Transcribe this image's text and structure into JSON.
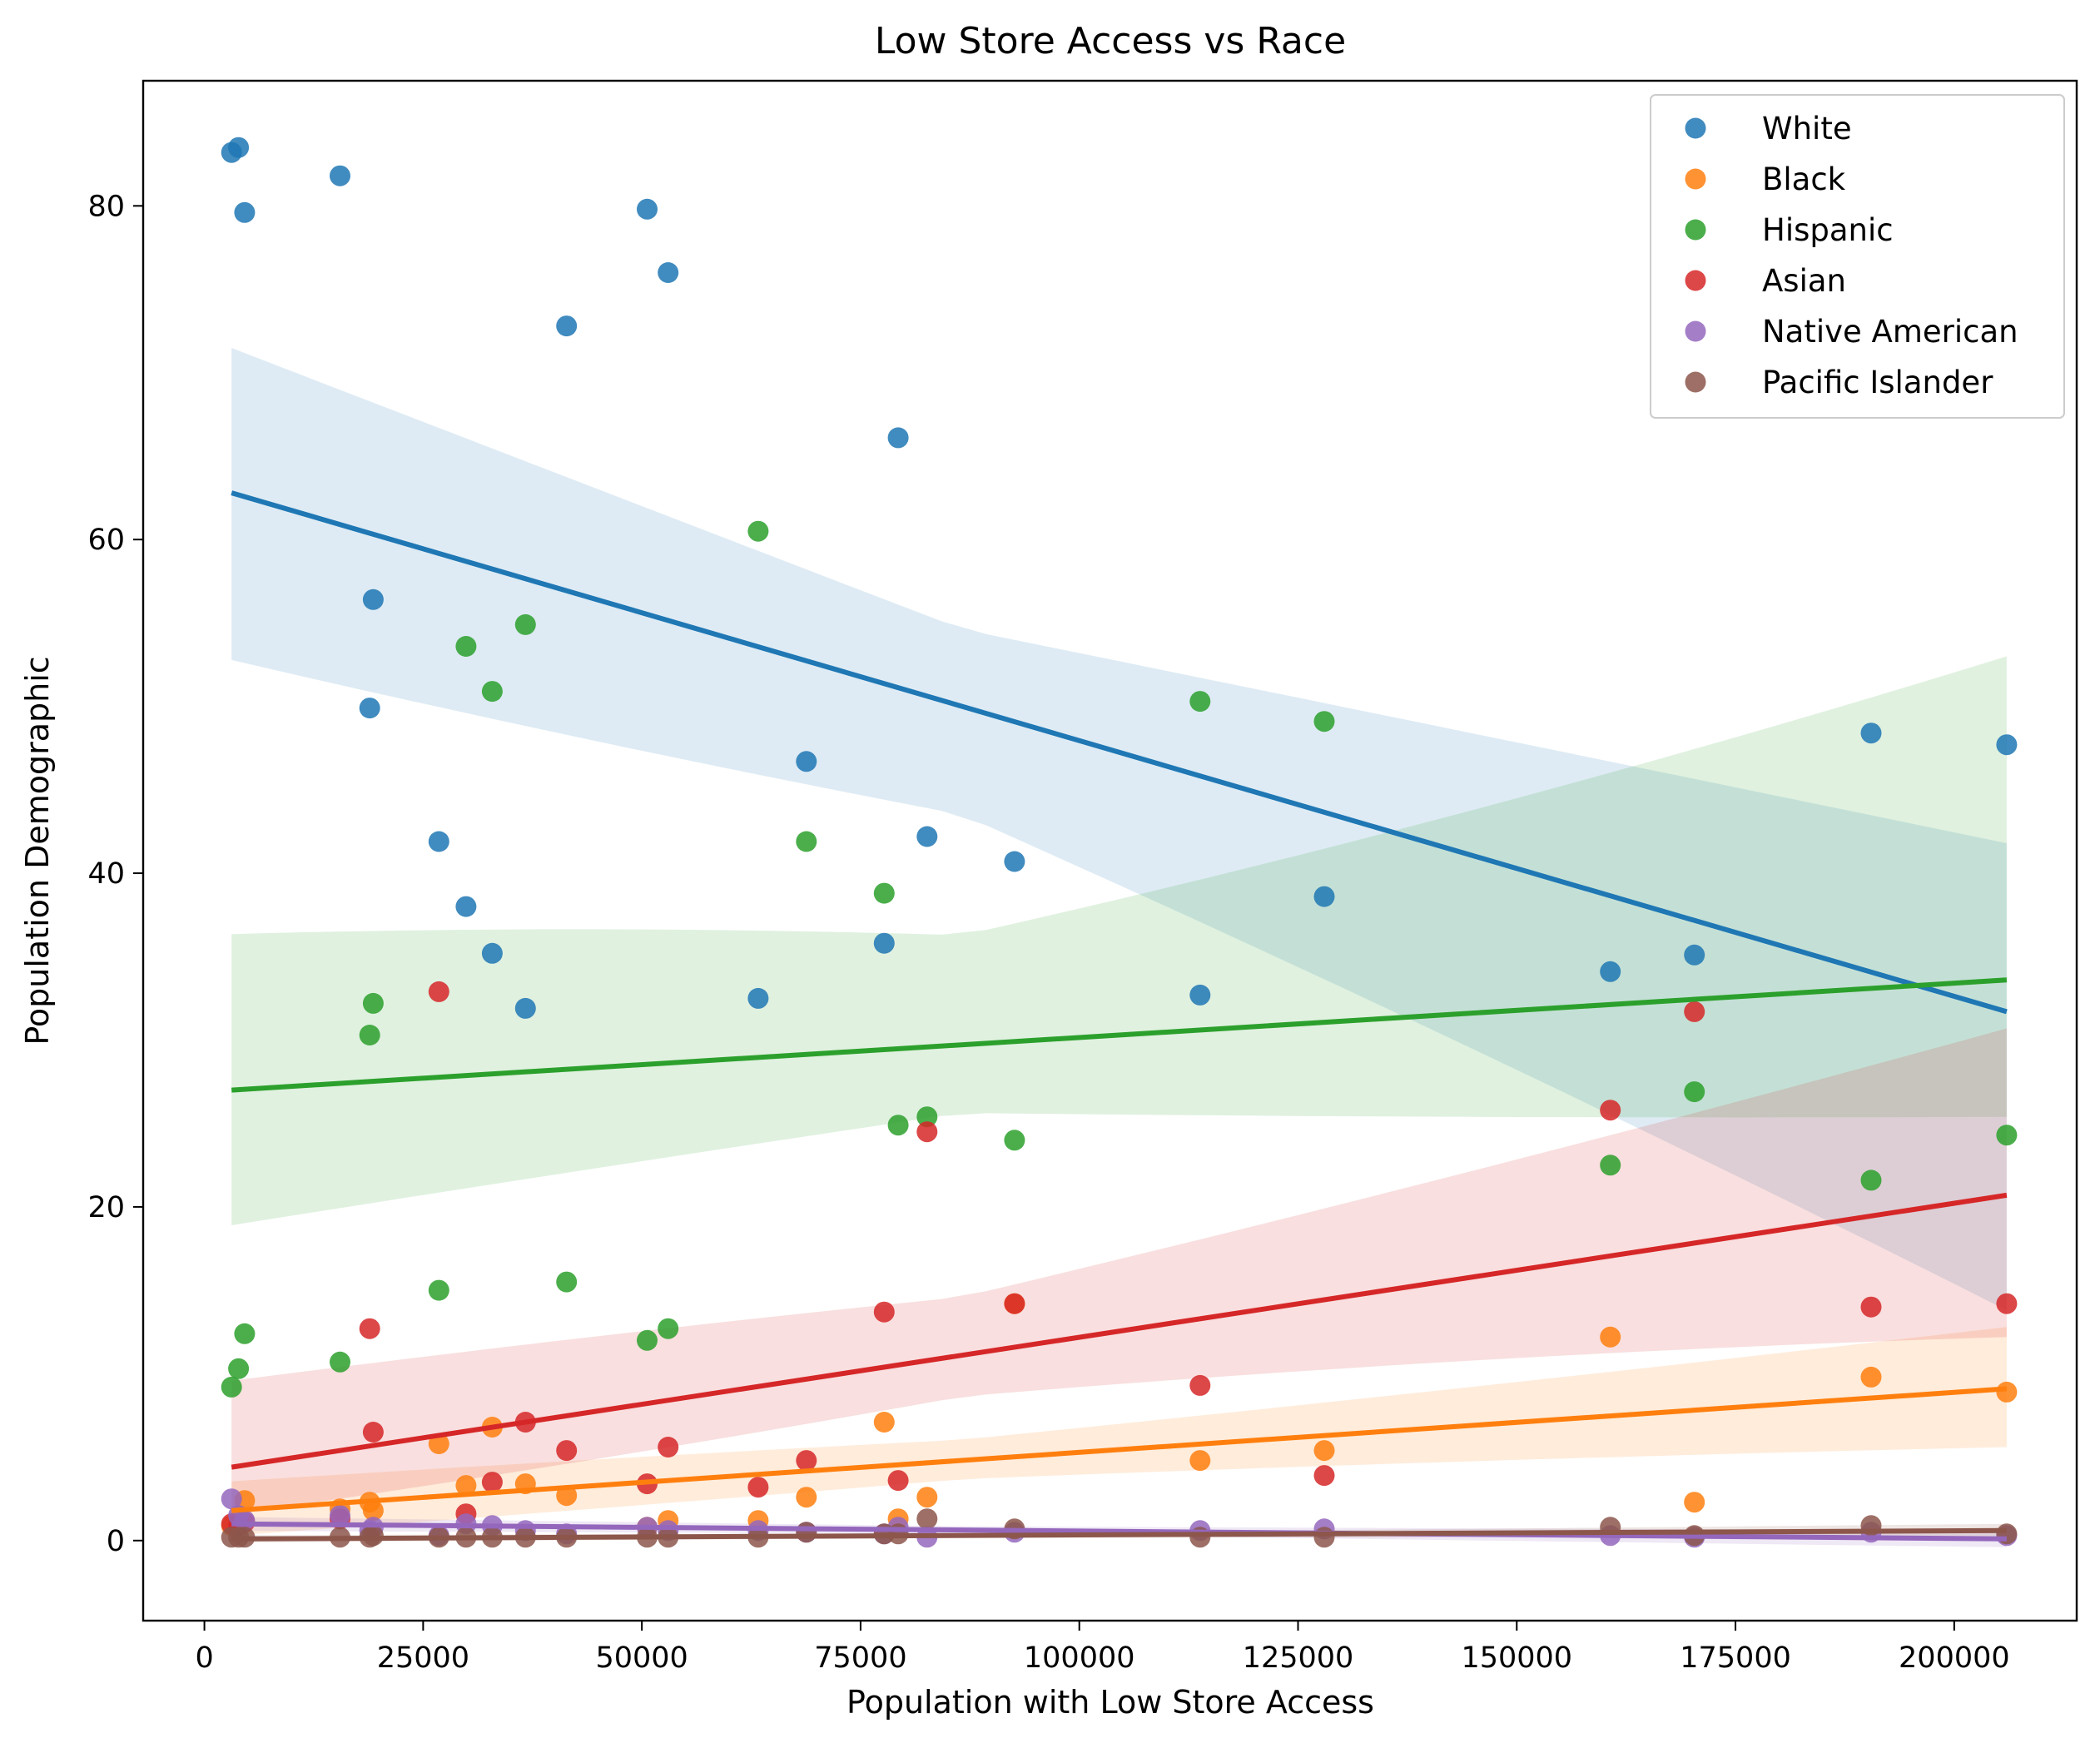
{
  "chart_data": {
    "type": "scatter",
    "title": "Low Store Access vs Race",
    "xlabel": "Population with Low Store Access",
    "ylabel": "Population Demographic",
    "xlim": [
      -7000,
      214000
    ],
    "ylim": [
      -4.8,
      87.5
    ],
    "xticks": [
      0,
      25000,
      50000,
      75000,
      100000,
      125000,
      150000,
      175000,
      200000
    ],
    "yticks": [
      0,
      20,
      40,
      60,
      80
    ],
    "legend_position": "upper right",
    "grid": false,
    "x": [
      3100,
      3900,
      4600,
      15500,
      18900,
      19300,
      26800,
      29900,
      32900,
      36700,
      41400,
      50600,
      53000,
      63300,
      68800,
      77700,
      79300,
      82600,
      92600,
      113800,
      128000,
      160700,
      170300,
      190500,
      206000
    ],
    "series": [
      {
        "name": "White",
        "color": "#1f77b4",
        "values": [
          83.2,
          83.5,
          79.6,
          81.8,
          49.9,
          56.4,
          41.9,
          38.0,
          35.2,
          31.9,
          72.8,
          79.8,
          76.0,
          32.5,
          46.7,
          35.8,
          66.1,
          42.2,
          40.7,
          32.7,
          38.6,
          34.1,
          35.1,
          48.4,
          47.7
        ],
        "fit": [
          62.8,
          31.7
        ],
        "band_upper": [
          73.2,
          41.8
        ],
        "band_lower": [
          50.8,
          13.8
        ]
      },
      {
        "name": "Black",
        "color": "#ff7f0e",
        "values": [
          0.9,
          1.2,
          2.4,
          1.9,
          2.3,
          1.8,
          5.8,
          3.3,
          6.8,
          3.4,
          2.7,
          0.8,
          1.2,
          1.2,
          2.6,
          7.1,
          1.3,
          2.6,
          14.2,
          4.8,
          5.4,
          12.2,
          2.3,
          9.8,
          8.9
        ],
        "fit": [
          1.8,
          9.1
        ],
        "band_upper": [
          3.9,
          12.8
        ],
        "band_lower": [
          0.0,
          5.6
        ]
      },
      {
        "name": "Hispanic",
        "color": "#2ca02c",
        "values": [
          9.2,
          10.3,
          12.4,
          10.7,
          30.3,
          32.2,
          15.0,
          53.6,
          50.9,
          54.9,
          15.5,
          12.0,
          12.7,
          60.5,
          41.9,
          38.8,
          24.9,
          25.4,
          24.0,
          50.3,
          49.1,
          22.5,
          26.9,
          21.6,
          24.3
        ],
        "fit": [
          27.0,
          33.6
        ],
        "band_upper": [
          38.2,
          53.0
        ],
        "band_lower": [
          17.3,
          25.4
        ]
      },
      {
        "name": "Asian",
        "color": "#d62728",
        "values": [
          1.0,
          0.9,
          1.1,
          1.3,
          12.7,
          6.5,
          32.9,
          1.6,
          3.5,
          7.1,
          5.4,
          3.4,
          5.6,
          3.2,
          4.8,
          13.7,
          3.6,
          24.5,
          14.2,
          9.3,
          3.9,
          25.8,
          31.7,
          14.0,
          14.2
        ],
        "fit": [
          4.4,
          20.7
        ],
        "band_upper": [
          10.6,
          30.7
        ],
        "band_lower": [
          1.0,
          12.2
        ]
      },
      {
        "name": "Native American",
        "color": "#9467bd",
        "values": [
          2.5,
          1.5,
          1.2,
          1.5,
          0.6,
          0.8,
          0.3,
          1.0,
          0.9,
          0.6,
          0.4,
          0.8,
          0.6,
          0.6,
          0.5,
          0.4,
          0.8,
          0.2,
          0.5,
          0.6,
          0.7,
          0.3,
          0.2,
          0.5,
          0.3
        ],
        "fit": [
          1.0,
          0.1
        ],
        "band_upper": [
          1.5,
          0.6
        ],
        "band_lower": [
          0.5,
          -0.4
        ]
      },
      {
        "name": "Pacific Islander",
        "color": "#8c564b",
        "values": [
          0.2,
          0.2,
          0.2,
          0.2,
          0.2,
          0.3,
          0.2,
          0.2,
          0.2,
          0.2,
          0.2,
          0.2,
          0.2,
          0.2,
          0.5,
          0.4,
          0.4,
          1.3,
          0.7,
          0.2,
          0.2,
          0.8,
          0.3,
          0.9,
          0.4
        ],
        "fit": [
          0.1,
          0.6
        ],
        "band_upper": [
          0.35,
          1.0
        ],
        "band_lower": [
          -0.15,
          0.2
        ]
      }
    ]
  }
}
